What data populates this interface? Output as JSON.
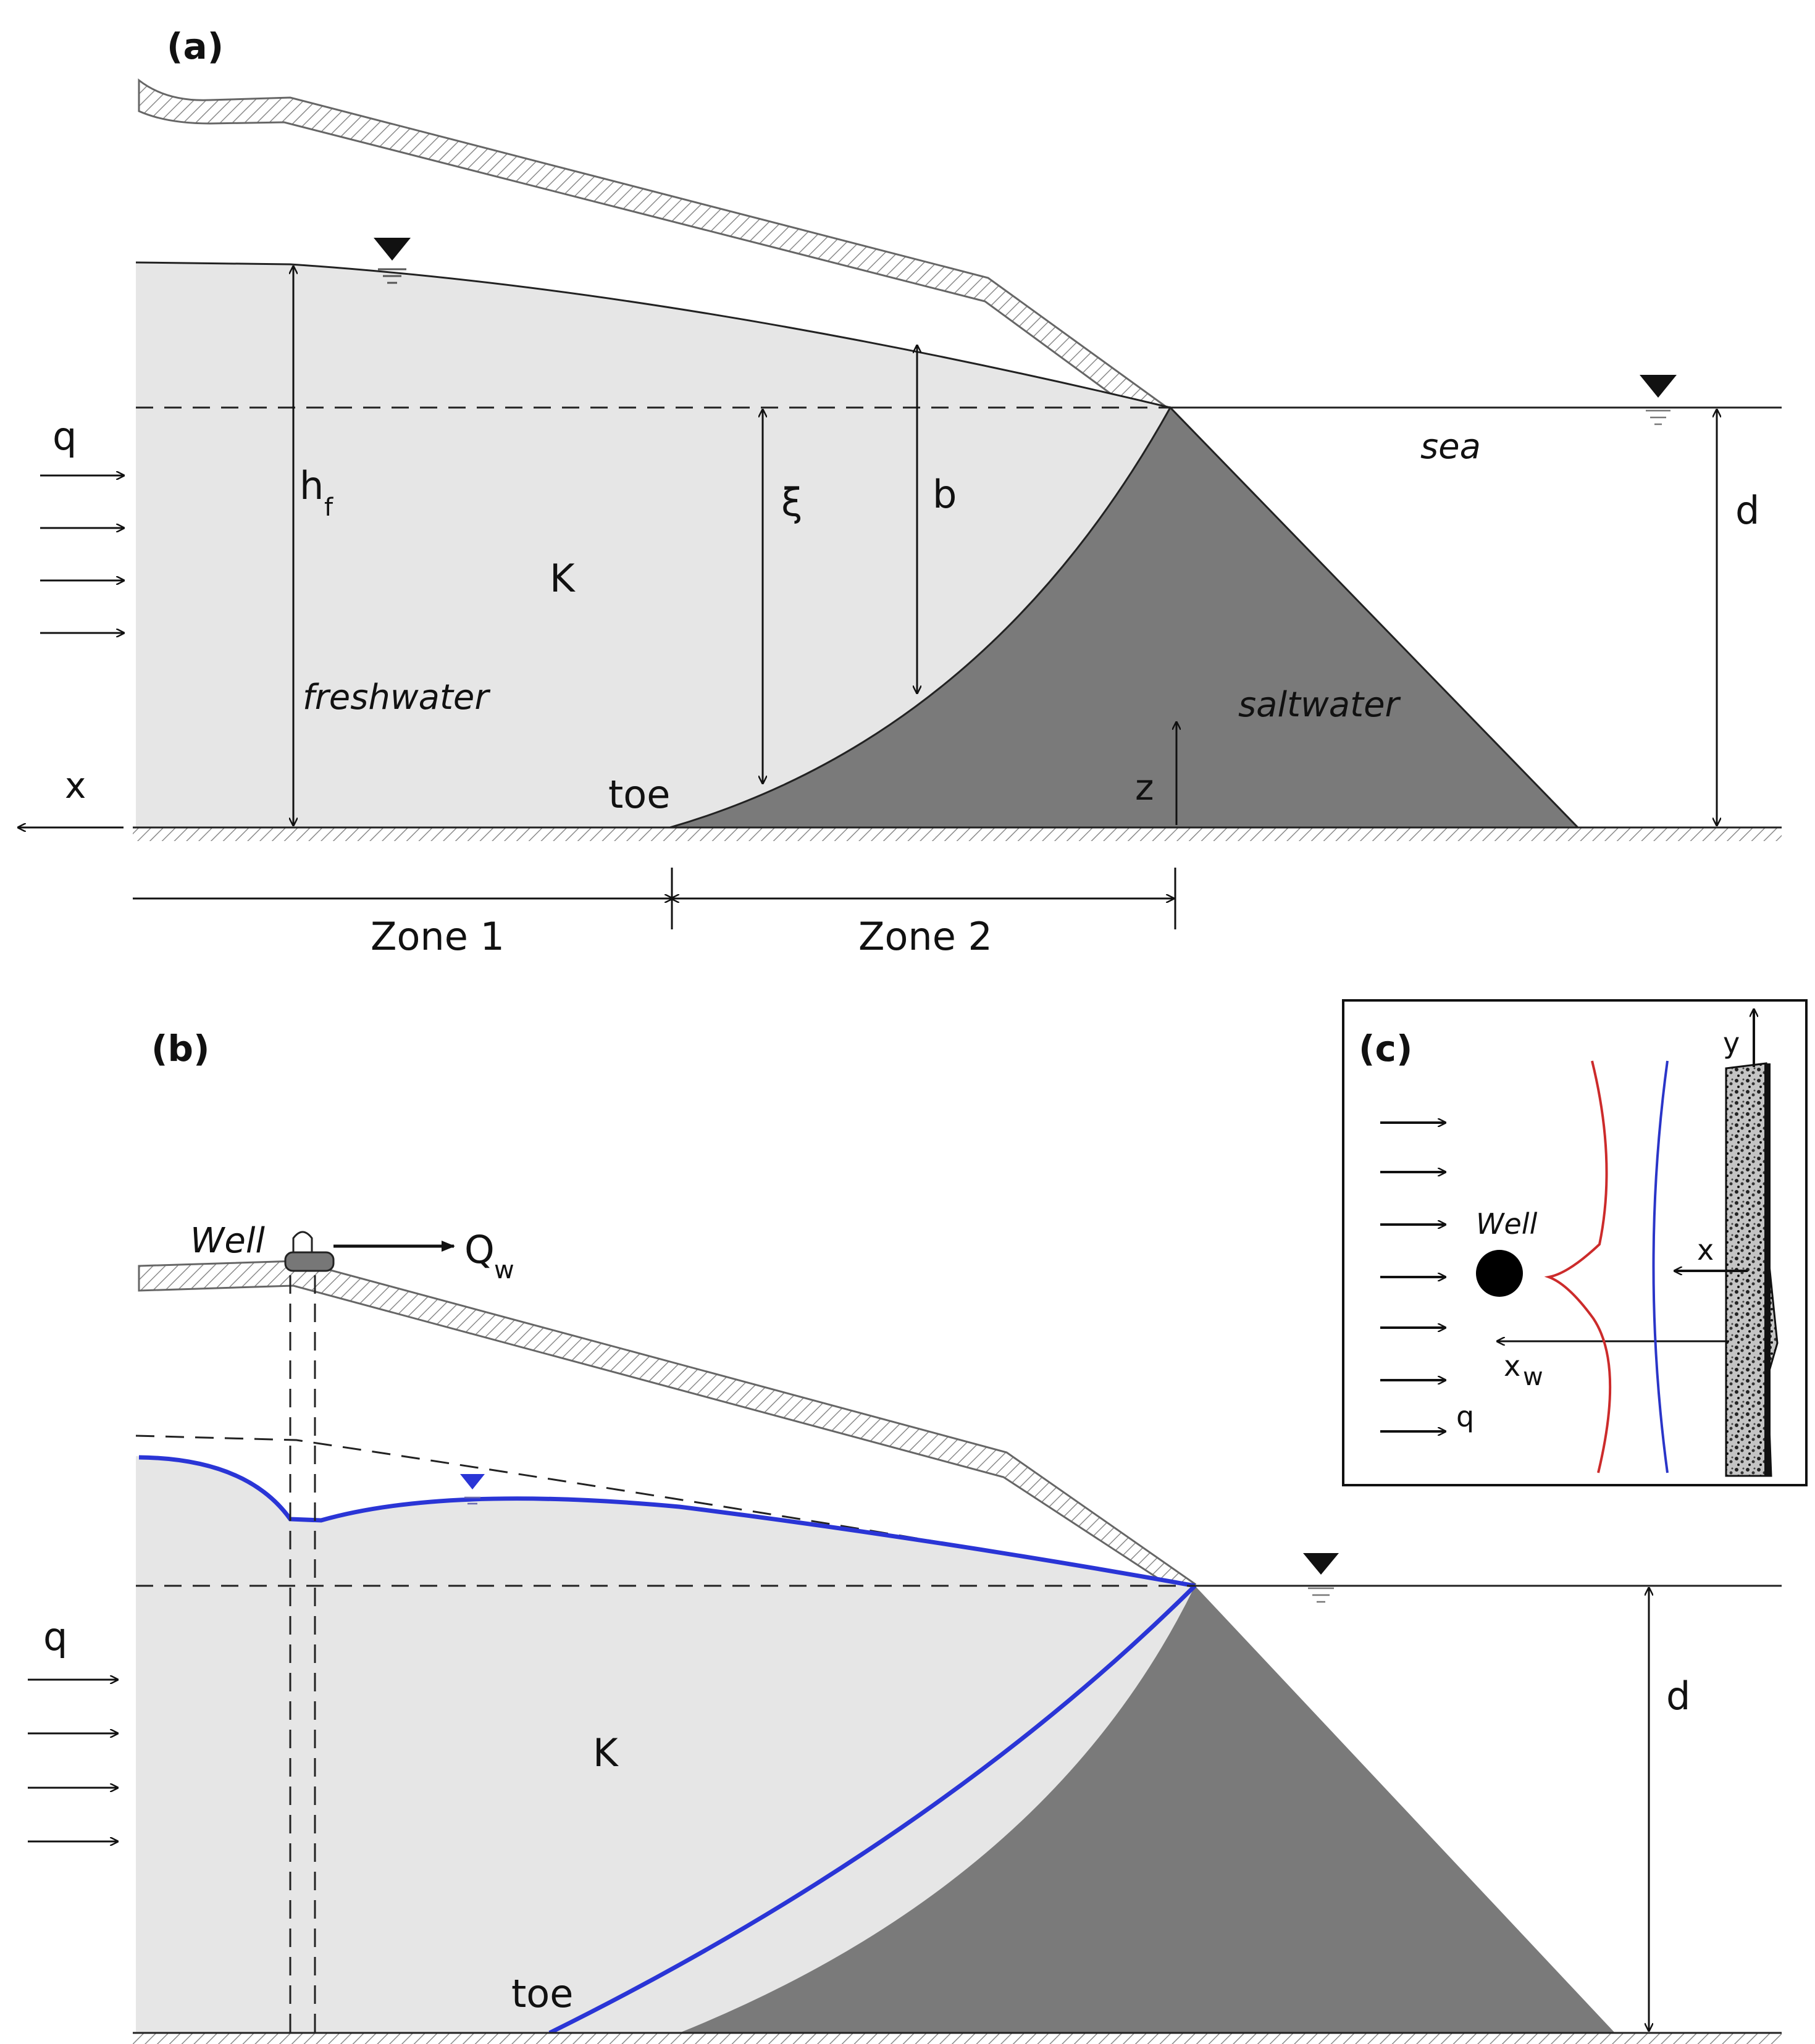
{
  "panels": {
    "a": {
      "label": "(a)",
      "q": "q",
      "h": "h",
      "h_sub": "f",
      "xi": "ξ",
      "b": "b",
      "K": "K",
      "freshwater": "freshwater",
      "saltwater": "saltwater",
      "sea": "sea",
      "d": "d",
      "x": "x",
      "z": "z",
      "toe": "toe",
      "zone1": "Zone 1",
      "zone2": "Zone 2"
    },
    "b": {
      "label": "(b)",
      "well": "Well",
      "Q": "Q",
      "Q_sub": "w",
      "q": "q",
      "K": "K",
      "d": "d",
      "toe": "toe"
    },
    "c": {
      "label": "(c)",
      "well": "Well",
      "x": "x",
      "y": "y",
      "xw": "x",
      "xw_sub": "w",
      "q": "q"
    }
  },
  "colors": {
    "freshwater_fill": "#e6e6e6",
    "saltwater_fill": "#7a7a7a",
    "interface_blue": "#2a35d6",
    "inset_red": "#cc2b2b",
    "inset_blue": "#2a35c8"
  },
  "icons": [
    "water-table-triangle-icon",
    "well-icon",
    "flow-arrow-icon"
  ]
}
